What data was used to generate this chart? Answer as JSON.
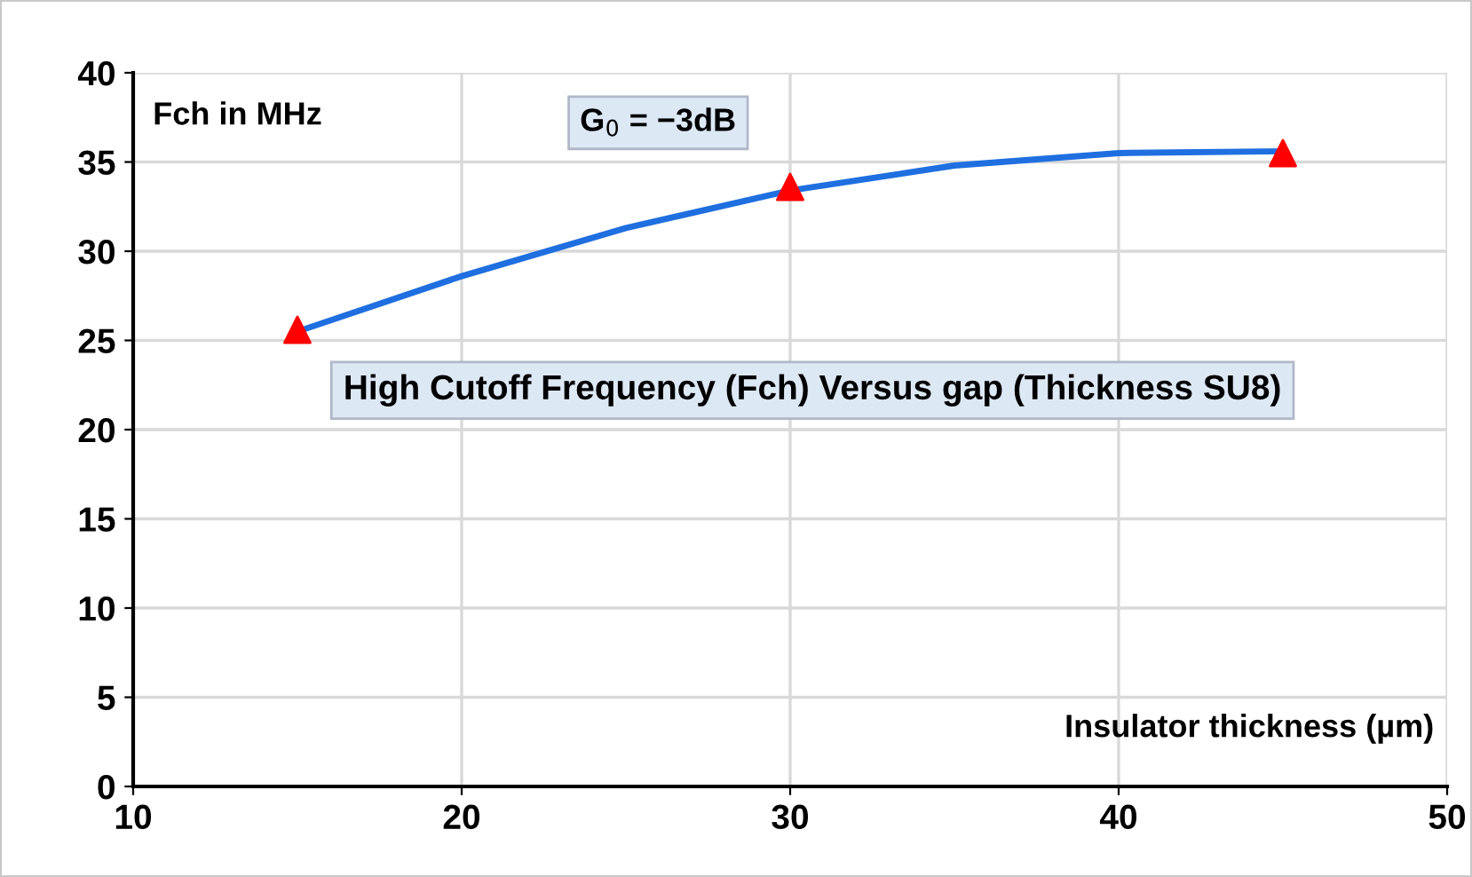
{
  "chart_data": {
    "type": "scatter",
    "title": "High Cutoff Frequency (Fch) Versus gap (Thickness SU8)",
    "xlabel": "Insulator thickness (µm)",
    "ylabel": "Fch in MHz",
    "annotations": [
      "G$_{0}$ = −3dB"
    ],
    "series": [
      {
        "type": "line",
        "color": "#1f6fe0",
        "x": [
          15,
          20,
          25,
          30,
          35,
          40,
          45
        ],
        "values": [
          25.5,
          28.6,
          31.3,
          33.4,
          34.8,
          35.5,
          35.6
        ],
        "marker": "none"
      },
      {
        "color": "#ff0000",
        "x": [
          15,
          30,
          45
        ],
        "values": [
          25.6,
          33.6,
          35.5
        ],
        "marker": "triangle"
      }
    ],
    "xlim": [
      10,
      50
    ],
    "xticks": [
      10,
      20,
      30,
      40,
      50
    ],
    "ylim": [
      0,
      40
    ],
    "yticks": [
      0,
      5,
      10,
      15,
      20,
      25,
      30,
      35,
      40
    ],
    "grid": true
  }
}
